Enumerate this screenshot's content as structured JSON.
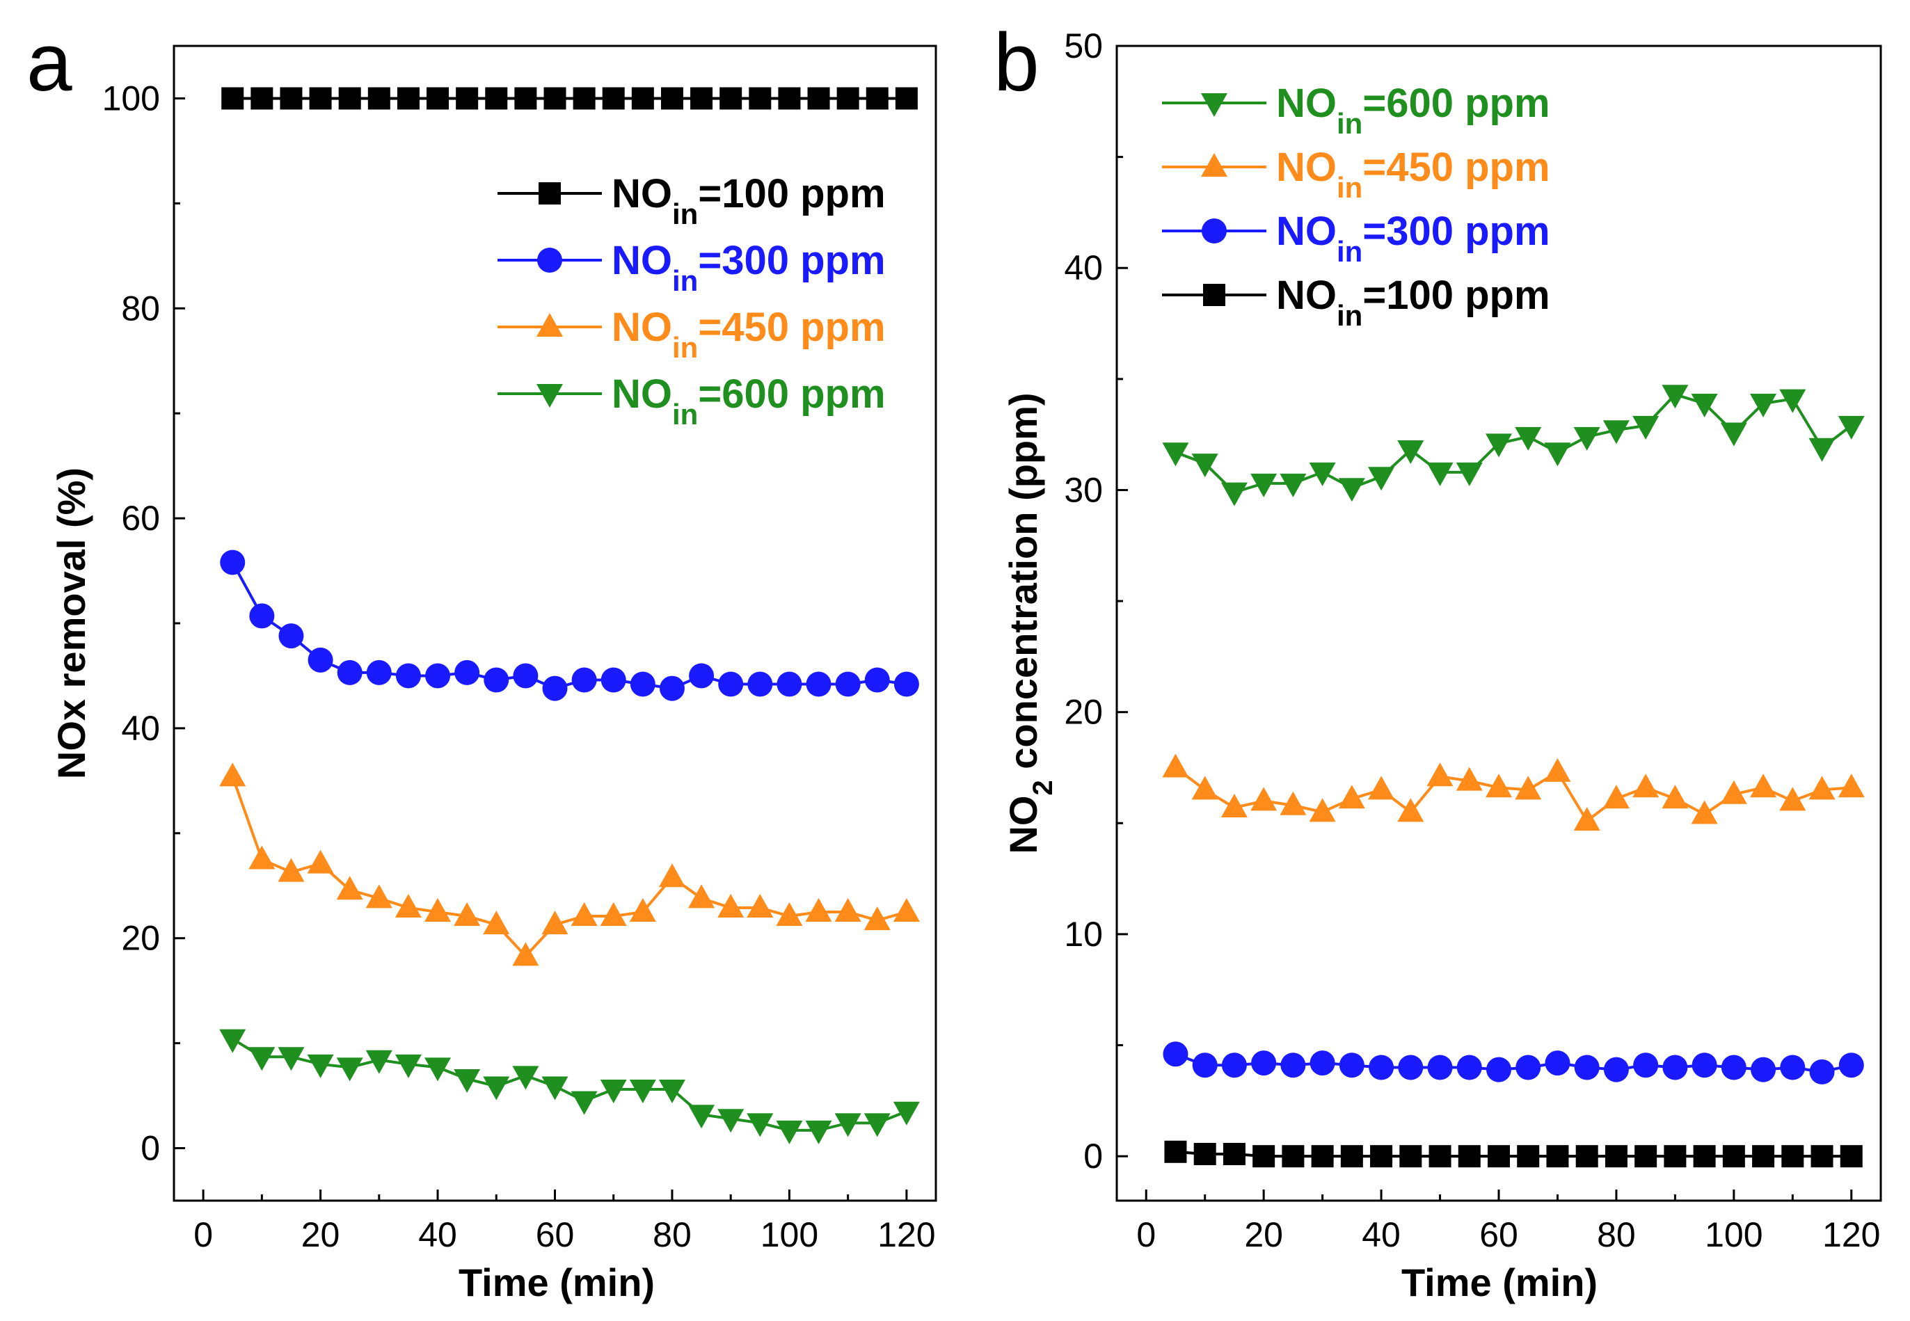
{
  "figure": {
    "description_panels": [
      "a",
      "b"
    ]
  },
  "chart_data": [
    {
      "type": "line",
      "panel_label": "a",
      "title": "",
      "xlabel": "Time (min)",
      "ylabel": "NOx removal (%)",
      "xlim": [
        -5,
        125
      ],
      "ylim": [
        -5,
        105
      ],
      "xticks": [
        0,
        20,
        40,
        60,
        80,
        100,
        120
      ],
      "yticks": [
        0,
        20,
        40,
        60,
        80,
        100
      ],
      "legend_position": "top-right",
      "x": [
        5,
        10,
        15,
        20,
        25,
        30,
        35,
        40,
        45,
        50,
        55,
        60,
        65,
        70,
        75,
        80,
        85,
        90,
        95,
        100,
        105,
        110,
        115,
        120
      ],
      "series": [
        {
          "name": "NOin=100 ppm",
          "label_main": "NO",
          "label_sub": "in",
          "label_rest": "=100 ppm",
          "color": "#000000",
          "marker": "square",
          "values": [
            100,
            100,
            100,
            100,
            100,
            100,
            100,
            100,
            100,
            100,
            100,
            100,
            100,
            100,
            100,
            100,
            100,
            100,
            100,
            100,
            100,
            100,
            100,
            100
          ]
        },
        {
          "name": "NOin=300 ppm",
          "label_main": "NO",
          "label_sub": "in",
          "label_rest": "=300 ppm",
          "color": "#1a1aff",
          "marker": "circle",
          "values": [
            55.8,
            50.7,
            48.8,
            46.5,
            45.3,
            45.3,
            45.0,
            45.0,
            45.3,
            44.6,
            45.0,
            43.8,
            44.6,
            44.6,
            44.2,
            43.8,
            45.0,
            44.2,
            44.2,
            44.2,
            44.2,
            44.2,
            44.6,
            44.2
          ]
        },
        {
          "name": "NOin=450 ppm",
          "label_main": "NO",
          "label_sub": "in",
          "label_rest": "=450 ppm",
          "color": "#ff8c1a",
          "marker": "triangle-up",
          "values": [
            35.4,
            27.5,
            26.3,
            27.1,
            24.6,
            23.8,
            22.9,
            22.5,
            22.1,
            21.3,
            18.3,
            21.3,
            22.1,
            22.1,
            22.5,
            25.8,
            23.8,
            22.9,
            22.9,
            22.1,
            22.5,
            22.5,
            21.7,
            22.5
          ]
        },
        {
          "name": "NOin=600 ppm",
          "label_main": "NO",
          "label_sub": "in",
          "label_rest": "=600 ppm",
          "color": "#1f8f1f",
          "marker": "triangle-down",
          "values": [
            10.4,
            8.7,
            8.7,
            8.0,
            7.7,
            8.4,
            8.0,
            7.7,
            6.6,
            5.9,
            6.9,
            5.9,
            4.5,
            5.6,
            5.6,
            5.6,
            3.2,
            2.8,
            2.4,
            1.7,
            1.7,
            2.4,
            2.4,
            3.5
          ]
        }
      ]
    },
    {
      "type": "line",
      "panel_label": "b",
      "title": "",
      "xlabel": "Time (min)",
      "ylabel": "NO2 concentration (ppm)",
      "ylabel_main": "NO",
      "ylabel_sub": "2",
      "ylabel_rest": " concentration (ppm)",
      "xlim": [
        -5,
        125
      ],
      "ylim": [
        -2,
        50
      ],
      "xticks": [
        0,
        20,
        40,
        60,
        80,
        100,
        120
      ],
      "yticks": [
        0,
        10,
        20,
        30,
        40,
        50
      ],
      "legend_position": "top-left",
      "x": [
        5,
        10,
        15,
        20,
        25,
        30,
        35,
        40,
        45,
        50,
        55,
        60,
        65,
        70,
        75,
        80,
        85,
        90,
        95,
        100,
        105,
        110,
        115,
        120
      ],
      "series": [
        {
          "name": "NOin=600 ppm",
          "label_main": "NO",
          "label_sub": "in",
          "label_rest": "=600 ppm",
          "color": "#1f8f1f",
          "marker": "triangle-down",
          "values": [
            31.7,
            31.2,
            29.9,
            30.3,
            30.3,
            30.8,
            30.1,
            30.6,
            31.8,
            30.8,
            30.8,
            32.1,
            32.4,
            31.7,
            32.4,
            32.7,
            32.9,
            34.3,
            33.9,
            32.6,
            33.9,
            34.1,
            31.9,
            32.9
          ]
        },
        {
          "name": "NOin=450 ppm",
          "label_main": "NO",
          "label_sub": "in",
          "label_rest": "=450 ppm",
          "color": "#ff8c1a",
          "marker": "triangle-up",
          "values": [
            17.5,
            16.5,
            15.7,
            16.0,
            15.8,
            15.5,
            16.1,
            16.5,
            15.5,
            17.1,
            16.9,
            16.6,
            16.5,
            17.3,
            15.1,
            16.1,
            16.6,
            16.1,
            15.4,
            16.3,
            16.6,
            16.0,
            16.5,
            16.6
          ]
        },
        {
          "name": "NOin=300 ppm",
          "label_main": "NO",
          "label_sub": "in",
          "label_rest": "=300 ppm",
          "color": "#1a1aff",
          "marker": "circle",
          "values": [
            4.6,
            4.1,
            4.1,
            4.2,
            4.1,
            4.2,
            4.1,
            4.0,
            4.0,
            4.0,
            4.0,
            3.9,
            4.0,
            4.2,
            4.0,
            3.9,
            4.1,
            4.0,
            4.1,
            4.0,
            3.9,
            4.0,
            3.8,
            4.1
          ]
        },
        {
          "name": "NOin=100 ppm",
          "label_main": "NO",
          "label_sub": "in",
          "label_rest": "=100 ppm",
          "color": "#000000",
          "marker": "square",
          "values": [
            0.2,
            0.1,
            0.1,
            0,
            0,
            0,
            0,
            0,
            0,
            0,
            0,
            0,
            0,
            0,
            0,
            0,
            0,
            0,
            0,
            0,
            0,
            0,
            0,
            0
          ]
        }
      ]
    }
  ]
}
